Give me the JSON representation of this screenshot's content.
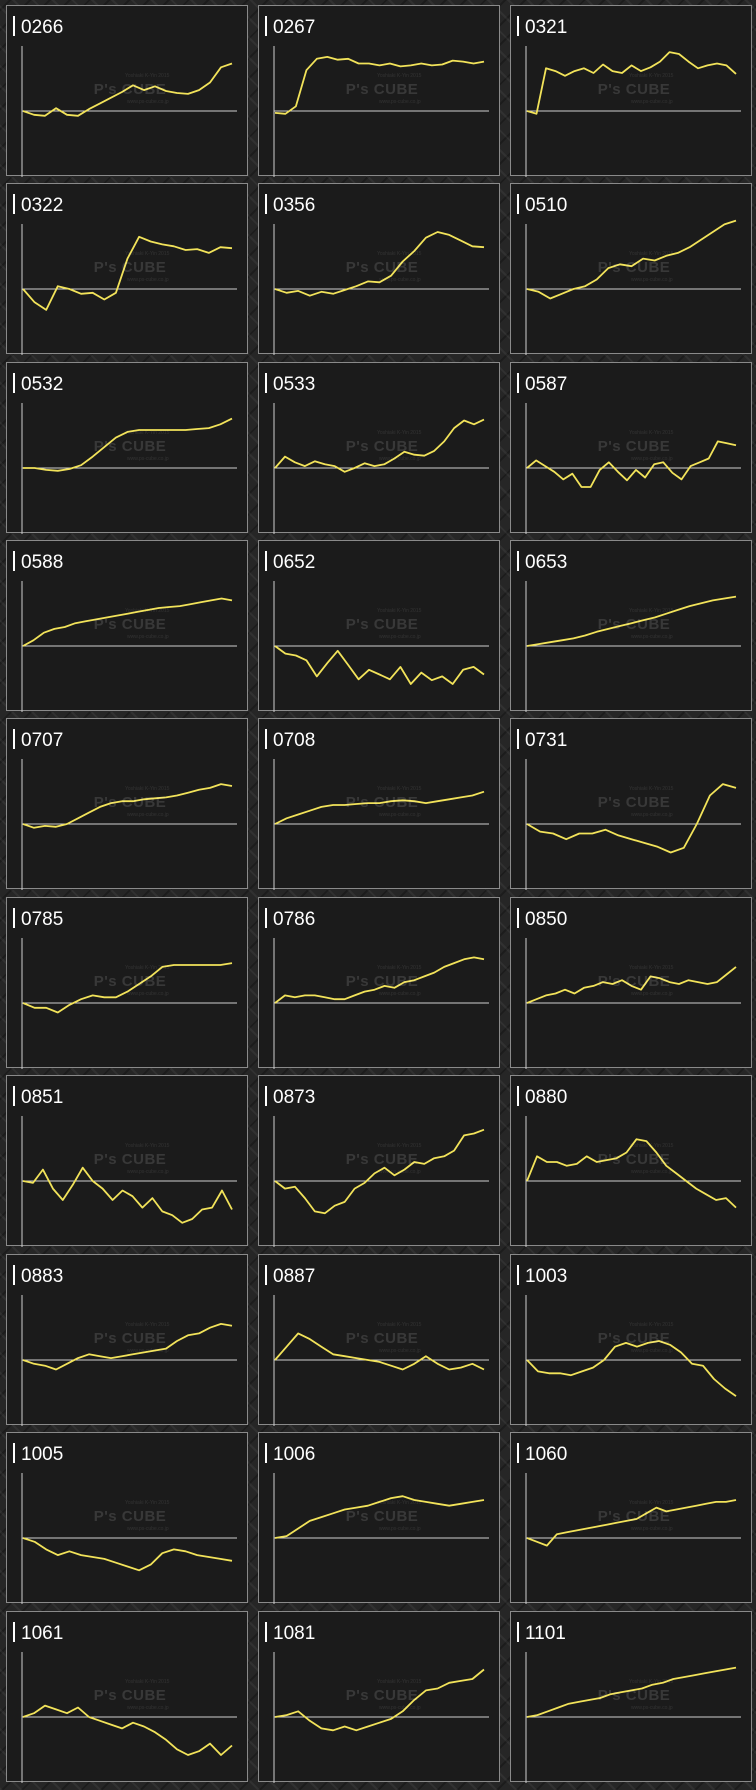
{
  "watermark": {
    "main": "P's CUBE",
    "top": "Yoshiaki K-Yin 2015",
    "bottom": "www.ps-cube.co.jp"
  },
  "colors": {
    "line": "#f2e35a",
    "panel_bg": "#1b1b1b",
    "panel_border": "#8a8a8a",
    "axis": "#cfcfcf",
    "text": "#ffffff"
  },
  "chart_data": [
    {
      "type": "line",
      "title": "0266",
      "values": [
        0,
        -4,
        -5,
        3,
        -4,
        -5,
        2,
        8,
        14,
        20,
        27,
        22,
        26,
        21,
        19,
        18,
        22,
        30,
        46,
        50
      ]
    },
    {
      "type": "line",
      "title": "0267",
      "values": [
        -2,
        -3,
        5,
        43,
        55,
        57,
        54,
        55,
        50,
        50,
        48,
        50,
        47,
        48,
        50,
        48,
        49,
        53,
        52,
        50,
        52
      ]
    },
    {
      "type": "line",
      "title": "0321",
      "values": [
        0,
        -3,
        45,
        42,
        37,
        42,
        45,
        40,
        49,
        42,
        40,
        48,
        42,
        46,
        52,
        62,
        60,
        52,
        45,
        48,
        50,
        48,
        39
      ]
    },
    {
      "type": "line",
      "title": "0322",
      "values": [
        0,
        -14,
        -22,
        3,
        0,
        -5,
        -4,
        -11,
        -4,
        32,
        55,
        50,
        47,
        45,
        41,
        42,
        38,
        44,
        43
      ]
    },
    {
      "type": "line",
      "title": "0356",
      "values": [
        0,
        -4,
        -2,
        -7,
        -3,
        -5,
        -1,
        3,
        8,
        7,
        14,
        29,
        40,
        54,
        60,
        57,
        51,
        45,
        44
      ]
    },
    {
      "type": "line",
      "title": "0510",
      "values": [
        0,
        -3,
        -10,
        -5,
        0,
        3,
        10,
        22,
        26,
        24,
        32,
        30,
        35,
        38,
        44,
        52,
        60,
        68,
        72
      ]
    },
    {
      "type": "line",
      "title": "0532",
      "values": [
        0,
        0,
        -2,
        -3,
        -1,
        3,
        12,
        22,
        32,
        38,
        40,
        40,
        40,
        40,
        40,
        41,
        42,
        46,
        52
      ]
    },
    {
      "type": "line",
      "title": "0533",
      "values": [
        0,
        12,
        6,
        2,
        7,
        4,
        2,
        -4,
        0,
        5,
        2,
        4,
        10,
        17,
        14,
        13,
        18,
        28,
        42,
        50,
        46,
        51
      ]
    },
    {
      "type": "line",
      "title": "0587",
      "values": [
        0,
        8,
        2,
        -4,
        -12,
        -6,
        -20,
        -20,
        -2,
        6,
        -4,
        -13,
        -2,
        -10,
        4,
        6,
        -5,
        -12,
        2,
        6,
        10,
        28,
        26,
        24
      ]
    },
    {
      "type": "line",
      "title": "0588",
      "values": [
        0,
        6,
        14,
        18,
        20,
        24,
        26,
        28,
        30,
        32,
        34,
        36,
        38,
        40,
        41,
        42,
        44,
        46,
        48,
        50,
        48
      ]
    },
    {
      "type": "line",
      "title": "0652",
      "values": [
        0,
        -8,
        -10,
        -15,
        -32,
        -18,
        -5,
        -20,
        -35,
        -25,
        -30,
        -35,
        -22,
        -40,
        -28,
        -36,
        -32,
        -40,
        -25,
        -22,
        -30
      ]
    },
    {
      "type": "line",
      "title": "0653",
      "values": [
        0,
        2,
        4,
        6,
        8,
        11,
        15,
        18,
        21,
        24,
        27,
        30,
        34,
        38,
        42,
        45,
        48,
        50,
        52
      ]
    },
    {
      "type": "line",
      "title": "0707",
      "values": [
        0,
        -4,
        -2,
        -3,
        0,
        6,
        12,
        18,
        22,
        24,
        24,
        26,
        27,
        28,
        30,
        33,
        36,
        38,
        42,
        40
      ]
    },
    {
      "type": "line",
      "title": "0708",
      "values": [
        0,
        6,
        10,
        14,
        18,
        20,
        20,
        21,
        22,
        22,
        24,
        25,
        24,
        22,
        24,
        26,
        28,
        30,
        34
      ]
    },
    {
      "type": "line",
      "title": "0731",
      "values": [
        0,
        -8,
        -10,
        -16,
        -10,
        -10,
        -6,
        -12,
        -16,
        -20,
        -24,
        -30,
        -25,
        0,
        30,
        42,
        38
      ]
    },
    {
      "type": "line",
      "title": "0785",
      "values": [
        0,
        -5,
        -5,
        -10,
        -2,
        4,
        8,
        6,
        6,
        12,
        20,
        28,
        38,
        40,
        40,
        40,
        40,
        40,
        42
      ]
    },
    {
      "type": "line",
      "title": "0786",
      "values": [
        0,
        8,
        6,
        8,
        8,
        6,
        4,
        4,
        8,
        12,
        14,
        18,
        16,
        22,
        24,
        28,
        32,
        38,
        42,
        46,
        48,
        46
      ]
    },
    {
      "type": "line",
      "title": "0850",
      "values": [
        0,
        4,
        8,
        10,
        14,
        10,
        16,
        18,
        22,
        20,
        24,
        18,
        14,
        28,
        26,
        22,
        20,
        24,
        22,
        20,
        22,
        30,
        38
      ]
    },
    {
      "type": "line",
      "title": "0851",
      "values": [
        0,
        -2,
        12,
        -8,
        -20,
        -4,
        14,
        0,
        -8,
        -20,
        -10,
        -16,
        -28,
        -18,
        -32,
        -36,
        -44,
        -40,
        -30,
        -28,
        -10,
        -30
      ]
    },
    {
      "type": "line",
      "title": "0873",
      "values": [
        0,
        -8,
        -6,
        -18,
        -32,
        -34,
        -26,
        -22,
        -8,
        -2,
        8,
        14,
        6,
        12,
        20,
        18,
        24,
        26,
        32,
        48,
        50,
        54
      ]
    },
    {
      "type": "line",
      "title": "0880",
      "values": [
        0,
        26,
        20,
        20,
        16,
        18,
        26,
        20,
        22,
        24,
        30,
        44,
        42,
        30,
        16,
        8,
        0,
        -8,
        -14,
        -20,
        -18,
        -28
      ]
    },
    {
      "type": "line",
      "title": "0883",
      "values": [
        0,
        -4,
        -6,
        -10,
        -4,
        2,
        6,
        4,
        2,
        4,
        6,
        8,
        10,
        12,
        20,
        26,
        28,
        34,
        38,
        36
      ]
    },
    {
      "type": "line",
      "title": "0887",
      "values": [
        0,
        14,
        28,
        22,
        14,
        6,
        4,
        2,
        0,
        -2,
        -6,
        -10,
        -4,
        4,
        -4,
        -10,
        -8,
        -4,
        -10
      ]
    },
    {
      "type": "line",
      "title": "1003",
      "values": [
        0,
        -12,
        -14,
        -14,
        -16,
        -12,
        -8,
        0,
        14,
        18,
        14,
        18,
        20,
        16,
        8,
        -4,
        -6,
        -20,
        -30,
        -38
      ]
    },
    {
      "type": "line",
      "title": "1005",
      "values": [
        0,
        -4,
        -12,
        -18,
        -14,
        -18,
        -20,
        -22,
        -26,
        -30,
        -34,
        -28,
        -16,
        -12,
        -14,
        -18,
        -20,
        -22,
        -24
      ]
    },
    {
      "type": "line",
      "title": "1006",
      "values": [
        0,
        2,
        10,
        18,
        22,
        26,
        30,
        32,
        34,
        38,
        42,
        44,
        40,
        38,
        36,
        34,
        36,
        38,
        40
      ]
    },
    {
      "type": "line",
      "title": "1060",
      "values": [
        0,
        -4,
        -8,
        4,
        6,
        8,
        10,
        12,
        14,
        16,
        18,
        20,
        26,
        32,
        28,
        30,
        32,
        34,
        36,
        38,
        38,
        40
      ]
    },
    {
      "type": "line",
      "title": "1061",
      "values": [
        0,
        4,
        12,
        8,
        4,
        10,
        0,
        -4,
        -8,
        -12,
        -6,
        -10,
        -16,
        -24,
        -34,
        -40,
        -36,
        -28,
        -40,
        -30
      ]
    },
    {
      "type": "line",
      "title": "1081",
      "values": [
        0,
        2,
        6,
        -4,
        -12,
        -14,
        -10,
        -14,
        -10,
        -6,
        -2,
        6,
        18,
        28,
        30,
        36,
        38,
        40,
        50
      ]
    },
    {
      "type": "line",
      "title": "1101",
      "values": [
        0,
        2,
        6,
        10,
        14,
        16,
        18,
        20,
        24,
        26,
        28,
        30,
        34,
        36,
        40,
        42,
        44,
        46,
        48,
        50,
        52
      ]
    }
  ]
}
